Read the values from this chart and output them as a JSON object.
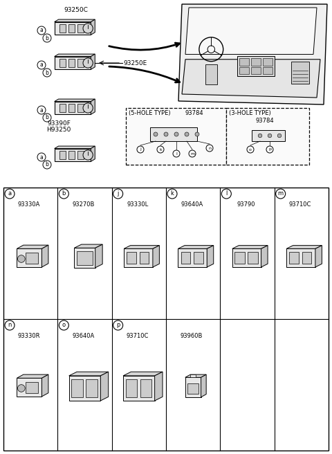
{
  "bg_color": "#ffffff",
  "border_color": "#000000",
  "top_assemblies": [
    {
      "label": "93250C",
      "label_pos": "top"
    },
    {
      "label": "93250E",
      "label_pos": "right"
    },
    {
      "label1": "93390F",
      "label2": "H93250",
      "label_pos": "bottom"
    },
    {
      "label": "",
      "label_pos": "none"
    }
  ],
  "five_hole_label": "(5-HOLE TYPE)",
  "five_hole_part": "93784",
  "three_hole_label": "(3-HOLE TYPE)",
  "three_hole_part": "93784",
  "five_hole_letters": [
    "j",
    "k",
    "l",
    "m",
    "n"
  ],
  "three_hole_letters": [
    "o",
    "p"
  ],
  "row1": [
    {
      "letter": "a",
      "part": "93330A"
    },
    {
      "letter": "b",
      "part": "93270B"
    },
    {
      "letter": "j",
      "part": "93330L"
    },
    {
      "letter": "k",
      "part": "93640A"
    },
    {
      "letter": "l",
      "part": "93790"
    },
    {
      "letter": "m",
      "part": "93710C"
    }
  ],
  "row2": [
    {
      "letter": "n",
      "part": "93330R"
    },
    {
      "letter": "o",
      "part": "93640A"
    },
    {
      "letter": "p",
      "part": "93710C"
    },
    {
      "letter": "",
      "part": "93960B"
    },
    {
      "letter": "",
      "part": ""
    },
    {
      "letter": "",
      "part": ""
    }
  ]
}
